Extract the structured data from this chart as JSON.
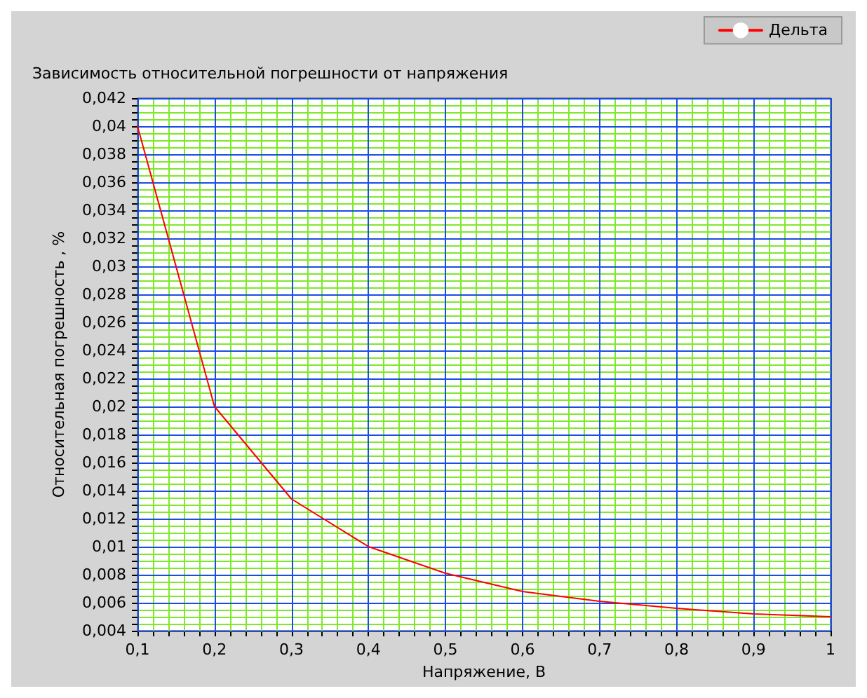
{
  "chart_data": {
    "type": "line",
    "title": "Зависимость относительной погрешности от напряжения",
    "xlabel": "Напряжение, В",
    "ylabel": "Относительная погрешность , %",
    "x": [
      0.1,
      0.2,
      0.3,
      0.4,
      0.5,
      0.6,
      0.7,
      0.8,
      0.9,
      1
    ],
    "series": [
      {
        "name": "Дельта",
        "color": "#ff0000",
        "values": [
          0.04,
          0.02,
          0.0134,
          0.01,
          0.0081,
          0.0068,
          0.0061,
          0.0056,
          0.0052,
          0.005
        ]
      }
    ],
    "xlim": [
      0.1,
      1
    ],
    "xticks": [
      {
        "value": 0.1,
        "label": "0,1"
      },
      {
        "value": 0.12,
        "label": null
      },
      {
        "value": 0.14,
        "label": null
      },
      {
        "value": 0.16,
        "label": null
      },
      {
        "value": 0.18,
        "label": null
      },
      {
        "value": 0.2,
        "label": "0,2"
      },
      {
        "value": 0.22,
        "label": null
      },
      {
        "value": 0.24,
        "label": null
      },
      {
        "value": 0.26,
        "label": null
      },
      {
        "value": 0.28,
        "label": null
      },
      {
        "value": 0.3,
        "label": "0,3"
      },
      {
        "value": 0.32,
        "label": null
      },
      {
        "value": 0.34,
        "label": null
      },
      {
        "value": 0.36,
        "label": null
      },
      {
        "value": 0.38,
        "label": null
      },
      {
        "value": 0.4,
        "label": "0,4"
      },
      {
        "value": 0.42,
        "label": null
      },
      {
        "value": 0.44,
        "label": null
      },
      {
        "value": 0.46,
        "label": null
      },
      {
        "value": 0.48,
        "label": null
      },
      {
        "value": 0.5,
        "label": "0,5"
      },
      {
        "value": 0.52,
        "label": null
      },
      {
        "value": 0.54,
        "label": null
      },
      {
        "value": 0.56,
        "label": null
      },
      {
        "value": 0.58,
        "label": null
      },
      {
        "value": 0.6,
        "label": "0,6"
      },
      {
        "value": 0.62,
        "label": null
      },
      {
        "value": 0.64,
        "label": null
      },
      {
        "value": 0.66,
        "label": null
      },
      {
        "value": 0.68,
        "label": null
      },
      {
        "value": 0.7,
        "label": "0,7"
      },
      {
        "value": 0.72,
        "label": null
      },
      {
        "value": 0.74,
        "label": null
      },
      {
        "value": 0.76,
        "label": null
      },
      {
        "value": 0.78,
        "label": null
      },
      {
        "value": 0.8,
        "label": "0,8"
      },
      {
        "value": 0.82,
        "label": null
      },
      {
        "value": 0.84,
        "label": null
      },
      {
        "value": 0.86,
        "label": null
      },
      {
        "value": 0.88,
        "label": null
      },
      {
        "value": 0.9,
        "label": "0,9"
      },
      {
        "value": 0.92,
        "label": null
      },
      {
        "value": 0.94,
        "label": null
      },
      {
        "value": 0.96,
        "label": null
      },
      {
        "value": 0.98,
        "label": null
      },
      1
    ],
    "ylim": [
      0.004,
      0.042
    ],
    "yticks": [
      {
        "value": 0.004,
        "label": "0,004"
      },
      {
        "value": 0.0045,
        "label": null
      },
      {
        "value": 0.005,
        "label": null
      },
      {
        "value": 0.0055,
        "label": null
      },
      {
        "value": 0.006,
        "label": "0,006"
      },
      {
        "value": 0.0065,
        "label": null
      },
      {
        "value": 0.007,
        "label": null
      },
      {
        "value": 0.0075,
        "label": null
      },
      {
        "value": 0.008,
        "label": "0,008"
      },
      {
        "value": 0.0085,
        "label": null
      },
      {
        "value": 0.009,
        "label": null
      },
      {
        "value": 0.0095,
        "label": null
      },
      {
        "value": 0.01,
        "label": "0,01"
      },
      {
        "value": 0.0105,
        "label": null
      },
      {
        "value": 0.011,
        "label": null
      },
      {
        "value": 0.0115,
        "label": null
      },
      {
        "value": 0.012,
        "label": "0,012"
      },
      {
        "value": 0.0125,
        "label": null
      },
      {
        "value": 0.013,
        "label": null
      },
      {
        "value": 0.0135,
        "label": null
      },
      {
        "value": 0.014,
        "label": "0,014"
      },
      {
        "value": 0.0145,
        "label": null
      },
      {
        "value": 0.015,
        "label": null
      },
      {
        "value": 0.0155,
        "label": null
      },
      {
        "value": 0.016,
        "label": "0,016"
      },
      {
        "value": 0.0165,
        "label": null
      },
      {
        "value": 0.017,
        "label": null
      },
      {
        "value": 0.0175,
        "label": null
      },
      {
        "value": 0.018,
        "label": "0,018"
      },
      {
        "value": 0.0185,
        "label": null
      },
      {
        "value": 0.019,
        "label": null
      },
      {
        "value": 0.0195,
        "label": null
      },
      {
        "value": 0.02,
        "label": "0,02"
      },
      {
        "value": 0.0205,
        "label": null
      },
      {
        "value": 0.021,
        "label": null
      },
      {
        "value": 0.0215,
        "label": null
      },
      {
        "value": 0.022,
        "label": "0,022"
      },
      {
        "value": 0.0225,
        "label": null
      },
      {
        "value": 0.023,
        "label": null
      },
      {
        "value": 0.0235,
        "label": null
      },
      {
        "value": 0.024,
        "label": "0,024"
      },
      {
        "value": 0.0245,
        "label": null
      },
      {
        "value": 0.025,
        "label": null
      },
      {
        "value": 0.0255,
        "label": null
      },
      {
        "value": 0.026,
        "label": "0,026"
      },
      {
        "value": 0.0265,
        "label": null
      },
      {
        "value": 0.027,
        "label": null
      },
      {
        "value": 0.0275,
        "label": null
      },
      {
        "value": 0.028,
        "label": "0,028"
      },
      {
        "value": 0.0285,
        "label": null
      },
      {
        "value": 0.029,
        "label": null
      },
      {
        "value": 0.0295,
        "label": null
      },
      {
        "value": 0.03,
        "label": "0,03"
      },
      {
        "value": 0.0305,
        "label": null
      },
      {
        "value": 0.031,
        "label": null
      },
      {
        "value": 0.0315,
        "label": null
      },
      {
        "value": 0.032,
        "label": "0,032"
      },
      {
        "value": 0.0325,
        "label": null
      },
      {
        "value": 0.033,
        "label": null
      },
      {
        "value": 0.0335,
        "label": null
      },
      {
        "value": 0.034,
        "label": "0,034"
      },
      {
        "value": 0.0345,
        "label": null
      },
      {
        "value": 0.035,
        "label": null
      },
      {
        "value": 0.0355,
        "label": null
      },
      {
        "value": 0.036,
        "label": "0,036"
      },
      {
        "value": 0.0365,
        "label": null
      },
      {
        "value": 0.037,
        "label": null
      },
      {
        "value": 0.0375,
        "label": null
      },
      {
        "value": 0.038,
        "label": "0,038"
      },
      {
        "value": 0.0385,
        "label": null
      },
      {
        "value": 0.039,
        "label": null
      },
      {
        "value": 0.0395,
        "label": null
      },
      {
        "value": 0.04,
        "label": "0,04"
      },
      {
        "value": 0.0405,
        "label": null
      },
      {
        "value": 0.041,
        "label": null
      },
      {
        "value": 0.0415,
        "label": null
      },
      {
        "value": 0.042,
        "label": "0,042"
      }
    ],
    "grid": true,
    "legend": "top right",
    "marker": "none",
    "line_style": "solid"
  }
}
